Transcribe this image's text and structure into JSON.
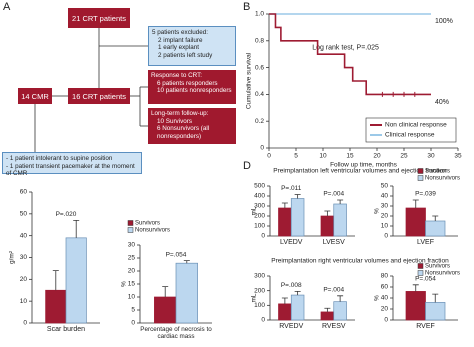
{
  "panel_labels": [
    "A",
    "B",
    "C",
    "D"
  ],
  "flowchart": {
    "boxes": [
      {
        "lines": [
          "21 CRT patients"
        ]
      },
      {
        "lines": [
          "5 patients excluded:",
          "2 implant failure",
          "1 early explant",
          "2 patients left study"
        ]
      },
      {
        "lines": [
          "Response to CRT:",
          "6 patients responders",
          "10 patients nonresponders"
        ]
      },
      {
        "lines": [
          "14 CMR"
        ]
      },
      {
        "lines": [
          "16 CRT patients"
        ]
      },
      {
        "lines": [
          "Long-term follow-up:",
          "10 Survivors",
          "6 Nonsurvivors (all",
          "nonresponders)"
        ]
      },
      {
        "lines": [
          "- 1 patient intolerant to supine position",
          "- 1 patient transient pacemaker at the moment of CMR"
        ]
      }
    ]
  },
  "panel_d_titles": [
    "Preimplantation left ventricular volumes and ejection fraction",
    "Preimplantation right ventricular volumes and ejection fraction"
  ],
  "chart_data": [
    {
      "type": "line",
      "x_label": "Follow up time, months",
      "y_label": "Cumulative survival",
      "note": "Log rank test, P=.025",
      "xlim": [
        0,
        35
      ],
      "xticks": [
        0,
        5,
        10,
        15,
        20,
        25,
        30,
        35
      ],
      "ylim": [
        0,
        1
      ],
      "yticks": [
        0,
        0.2,
        0.4,
        0.6,
        0.8,
        {
          "value": 1,
          "label": "1.0"
        }
      ],
      "legend": "lower right",
      "series": [
        {
          "name": "Non clinical response",
          "color": "#9e1b32",
          "end_label": "40%",
          "x": [
            0,
            1.2,
            1.2,
            2.2,
            2.2,
            9,
            9,
            14,
            14,
            15.5,
            15.5,
            18,
            18,
            30
          ],
          "values": [
            1,
            1,
            0.9,
            0.9,
            0.8,
            0.8,
            0.7,
            0.7,
            0.6,
            0.6,
            0.5,
            0.5,
            0.4,
            0.4
          ],
          "censored_x": [
            21,
            23,
            25,
            27
          ],
          "censored_y": [
            0.4,
            0.4,
            0.4,
            0.4
          ]
        },
        {
          "name": "Clinical response",
          "color": "#9cc9e8",
          "end_label": "100%",
          "x": [
            0,
            30
          ],
          "values": [
            1,
            1
          ]
        }
      ]
    },
    {
      "type": "bar",
      "y_label": "g/m²",
      "categories": [
        "Scar burden"
      ],
      "annotations": [
        "P=.020"
      ],
      "ylim": [
        0,
        60
      ],
      "yticks": [
        0,
        10,
        20,
        30,
        40,
        50,
        60
      ],
      "series": [
        {
          "name": "Survivors",
          "color": "#9e1b32",
          "values": [
            15
          ],
          "errors": [
            9
          ]
        },
        {
          "name": "Nonsurvivors",
          "color": "#bcd7ef",
          "values": [
            39
          ],
          "errors": [
            8
          ]
        }
      ]
    },
    {
      "type": "bar",
      "y_label": "%",
      "categories": [
        "Percentage of necrosis to cardiac mass"
      ],
      "annotations": [
        "P=.054"
      ],
      "ylim": [
        0,
        30
      ],
      "yticks": [
        0,
        5,
        10,
        15,
        20,
        25,
        30
      ],
      "legend": "upper left",
      "series": [
        {
          "name": "Survivors",
          "color": "#9e1b32",
          "values": [
            10
          ],
          "errors": [
            4
          ]
        },
        {
          "name": "Nonsurvivors",
          "color": "#bcd7ef",
          "values": [
            23
          ],
          "errors": [
            1
          ]
        }
      ]
    },
    {
      "type": "bar",
      "y_label": "mL",
      "categories": [
        "LVEDV",
        "LVESV"
      ],
      "annotations": [
        "P=.011",
        "P=.004"
      ],
      "ylim": [
        0,
        500
      ],
      "yticks": [
        0,
        100,
        200,
        300,
        400,
        500
      ],
      "series": [
        {
          "name": "Survivors",
          "color": "#9e1b32",
          "values": [
            280,
            200
          ],
          "errors": [
            50,
            50
          ]
        },
        {
          "name": "Nonsurvivors",
          "color": "#bcd7ef",
          "values": [
            375,
            320
          ],
          "errors": [
            40,
            40
          ]
        }
      ]
    },
    {
      "type": "bar",
      "y_label": "%",
      "categories": [
        "LVEF"
      ],
      "annotations": [
        "P=.039"
      ],
      "ylim": [
        0,
        50
      ],
      "yticks": [
        0,
        10,
        20,
        30,
        40,
        50
      ],
      "legend": "upper right",
      "series": [
        {
          "name": "Survivors",
          "color": "#9e1b32",
          "values": [
            28
          ],
          "errors": [
            8
          ]
        },
        {
          "name": "Nonsurvivors",
          "color": "#bcd7ef",
          "values": [
            15
          ],
          "errors": [
            5
          ]
        }
      ]
    },
    {
      "type": "bar",
      "y_label": "mL",
      "categories": [
        "RVEDV",
        "RVESV"
      ],
      "annotations": [
        "P=.008",
        "P=.004"
      ],
      "ylim": [
        0,
        300
      ],
      "yticks": [
        0,
        100,
        200,
        300
      ],
      "series": [
        {
          "name": "Survivors",
          "color": "#9e1b32",
          "values": [
            110,
            55
          ],
          "errors": [
            40,
            25
          ]
        },
        {
          "name": "Nonsurvivors",
          "color": "#bcd7ef",
          "values": [
            170,
            125
          ],
          "errors": [
            25,
            40
          ]
        }
      ]
    },
    {
      "type": "bar",
      "y_label": "%",
      "categories": [
        "RVEF"
      ],
      "annotations": [
        "P=.054"
      ],
      "ylim": [
        0,
        80
      ],
      "yticks": [
        0,
        20,
        40,
        60,
        80
      ],
      "legend": "upper right",
      "series": [
        {
          "name": "Survivors",
          "color": "#9e1b32",
          "values": [
            52
          ],
          "errors": [
            12
          ]
        },
        {
          "name": "Nonsurvivors",
          "color": "#bcd7ef",
          "values": [
            32
          ],
          "errors": [
            15
          ]
        }
      ]
    }
  ]
}
